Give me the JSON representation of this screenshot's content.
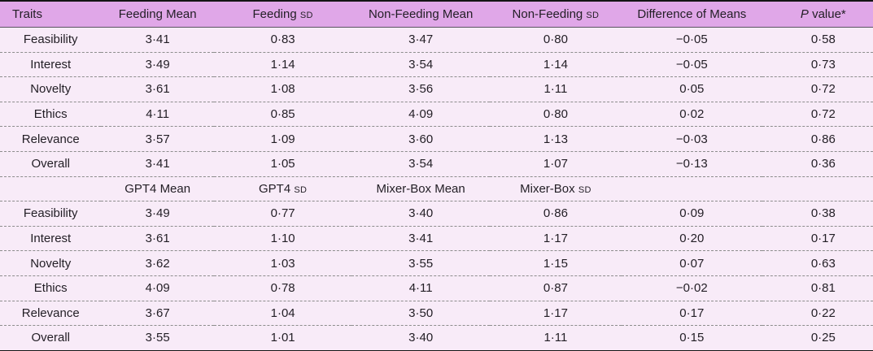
{
  "colors": {
    "header_bg": "#e0a7e8",
    "row_bg": "#f8ebf8",
    "text": "#221e25",
    "divider": "#8d8d8d",
    "frame": "#141414",
    "header_rule": "#5a5460"
  },
  "table": {
    "columns": [
      {
        "id": "traits",
        "label": [
          {
            "t": "Traits"
          }
        ]
      },
      {
        "id": "feeding-mean",
        "label": [
          {
            "t": "Feeding Mean"
          }
        ]
      },
      {
        "id": "feeding-sd",
        "label": [
          {
            "t": "Feeding "
          },
          {
            "t": "SD",
            "sc": true
          }
        ]
      },
      {
        "id": "non-feeding-mean",
        "label": [
          {
            "t": "Non-Feeding Mean"
          }
        ]
      },
      {
        "id": "non-feeding-sd",
        "label": [
          {
            "t": "Non-Feeding "
          },
          {
            "t": "SD",
            "sc": true
          }
        ]
      },
      {
        "id": "difference-of-means",
        "label": [
          {
            "t": "Difference of Means"
          }
        ]
      },
      {
        "id": "p-value",
        "label": [
          {
            "t": "P",
            "italic": true
          },
          {
            "t": " value*"
          }
        ]
      }
    ],
    "sections": [
      {
        "subheader": null,
        "rows": [
          {
            "trait": "Feasibility",
            "cells": [
              "3·41",
              "0·83",
              "3·47",
              "0·80",
              "−0·05",
              "0·58"
            ]
          },
          {
            "trait": "Interest",
            "cells": [
              "3·49",
              "1·14",
              "3·54",
              "1·14",
              "−0·05",
              "0·73"
            ]
          },
          {
            "trait": "Novelty",
            "cells": [
              "3·61",
              "1·08",
              "3·56",
              "1·11",
              "0·05",
              "0·72"
            ]
          },
          {
            "trait": "Ethics",
            "cells": [
              "4·11",
              "0·85",
              "4·09",
              "0·80",
              "0·02",
              "0·72"
            ]
          },
          {
            "trait": "Relevance",
            "cells": [
              "3·57",
              "1·09",
              "3·60",
              "1·13",
              "−0·03",
              "0·86"
            ]
          },
          {
            "trait": "Overall",
            "cells": [
              "3·41",
              "1·05",
              "3·54",
              "1·07",
              "−0·13",
              "0·36"
            ]
          }
        ]
      },
      {
        "subheader": {
          "trait": "",
          "labels": [
            [
              {
                "t": "GPT4 Mean"
              }
            ],
            [
              {
                "t": "GPT4 "
              },
              {
                "t": "SD",
                "sc": true
              }
            ],
            [
              {
                "t": "Mixer-Box Mean"
              }
            ],
            [
              {
                "t": "Mixer-Box "
              },
              {
                "t": "SD",
                "sc": true
              }
            ],
            [],
            []
          ]
        },
        "rows": [
          {
            "trait": "Feasibility",
            "cells": [
              "3·49",
              "0·77",
              "3·40",
              "0·86",
              "0·09",
              "0·38"
            ]
          },
          {
            "trait": "Interest",
            "cells": [
              "3·61",
              "1·10",
              "3·41",
              "1·17",
              "0·20",
              "0·17"
            ]
          },
          {
            "trait": "Novelty",
            "cells": [
              "3·62",
              "1·03",
              "3·55",
              "1·15",
              "0·07",
              "0·63"
            ]
          },
          {
            "trait": "Ethics",
            "cells": [
              "4·09",
              "0·78",
              "4·11",
              "0·87",
              "−0·02",
              "0·81"
            ]
          },
          {
            "trait": "Relevance",
            "cells": [
              "3·67",
              "1·04",
              "3·50",
              "1·17",
              "0·17",
              "0·22"
            ]
          },
          {
            "trait": "Overall",
            "cells": [
              "3·55",
              "1·01",
              "3·40",
              "1·11",
              "0·15",
              "0·25"
            ]
          }
        ]
      }
    ],
    "column_widths_pct": [
      11.6,
      12.9,
      15.8,
      15.8,
      15.1,
      16.1,
      12.7
    ]
  }
}
